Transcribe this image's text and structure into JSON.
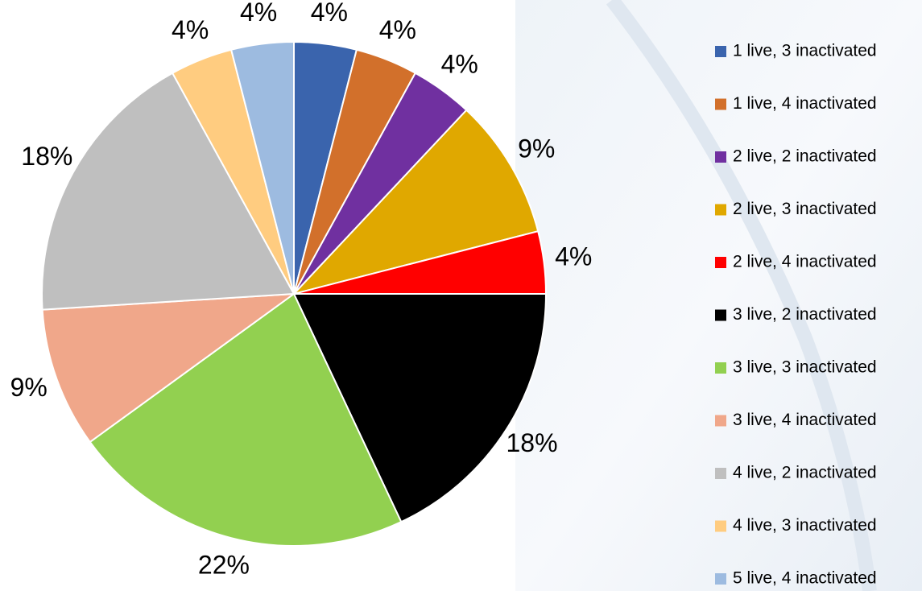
{
  "chart_data": {
    "type": "pie",
    "categories": [
      "1 live, 3 inactivated",
      "1 live, 4 inactivated",
      "2 live, 2 inactivated",
      "2 live, 3 inactivated",
      "2 live, 4 inactivated",
      "3 live, 2 inactivated",
      "3 live, 3 inactivated",
      "3 live, 4 inactivated",
      "4 live, 2 inactivated",
      "4 live, 3 inactivated",
      "5 live, 4 inactivated"
    ],
    "values": [
      4,
      4,
      4,
      9,
      4,
      18,
      22,
      9,
      18,
      4,
      4
    ],
    "value_labels": [
      "4%",
      "4%",
      "4%",
      "9%",
      "4%",
      "18%",
      "22%",
      "9%",
      "18%",
      "4%",
      "4%"
    ],
    "colors": [
      "#3a64ad",
      "#d2702b",
      "#7030a0",
      "#e0a800",
      "#ff0000",
      "#000000",
      "#92d050",
      "#f0a78a",
      "#bfbfbf",
      "#ffcc80",
      "#9dbbe0"
    ],
    "legend": "right"
  }
}
